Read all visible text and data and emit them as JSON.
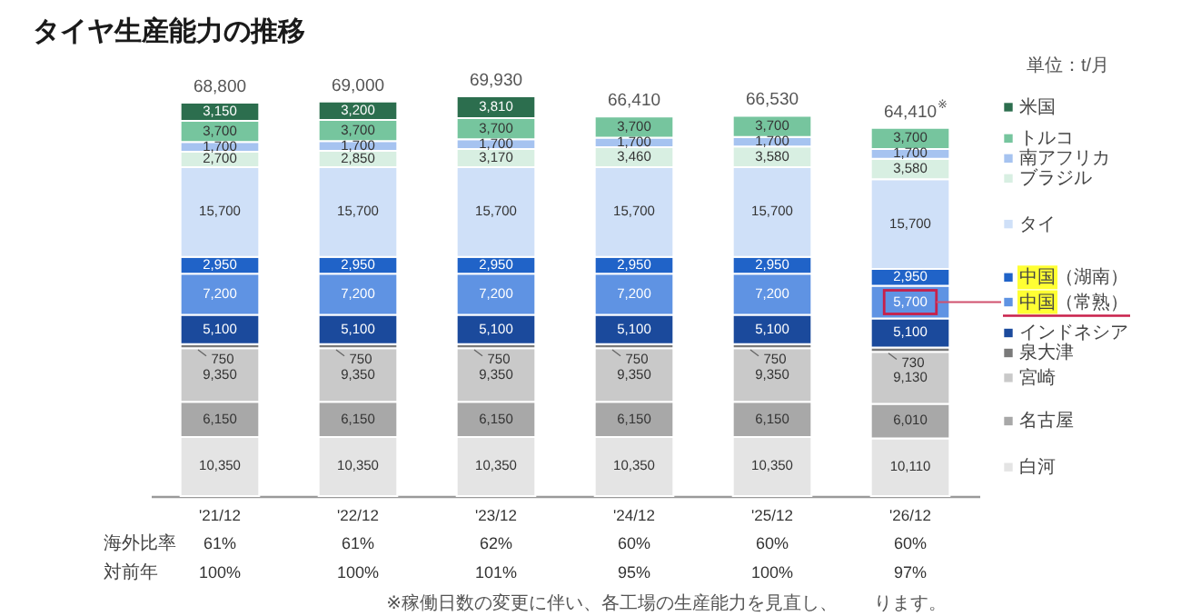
{
  "chart_data": [
    {
      "type": "bar",
      "title": "タイヤ生産能力の推移",
      "categories": [
        "'21/12",
        "'22/12",
        "'23/12",
        "'24/12",
        "'25/12",
        "'26/12"
      ],
      "stacked": true,
      "legend": "right",
      "totals": [
        "68,800",
        "69,000",
        "69,930",
        "66,410",
        "66,530",
        "64,410$^{※}$"
      ],
      "annotations": [
        "単位：t/月"
      ],
      "series": [
        {
          "name": "白河",
          "color": "#e4e4e4",
          "values": [
            10350,
            10350,
            10350,
            10350,
            10350,
            10110
          ],
          "value_labels": [
            "10,350",
            "10,350",
            "10,350",
            "10,350",
            "10,350",
            "10,110"
          ]
        },
        {
          "name": "名古屋",
          "color": "#a8a8a8",
          "values": [
            6150,
            6150,
            6150,
            6150,
            6150,
            6010
          ],
          "value_labels": [
            "6,150",
            "6,150",
            "6,150",
            "6,150",
            "6,150",
            "6,010"
          ]
        },
        {
          "name": "宮崎",
          "color": "#c9c9c9",
          "values": [
            9350,
            9350,
            9350,
            9350,
            9350,
            9130
          ],
          "value_labels": [
            "9,350",
            "9,350",
            "9,350",
            "9,350",
            "9,350",
            "9,130"
          ]
        },
        {
          "name": "泉大津",
          "color": "#7a7a7a",
          "values": [
            750,
            750,
            750,
            750,
            750,
            730
          ],
          "value_labels": [
            "750",
            "750",
            "750",
            "750",
            "750",
            "730"
          ]
        },
        {
          "name": "インドネシア",
          "color": "#1b4a9c",
          "values": [
            5100,
            5100,
            5100,
            5100,
            5100,
            5100
          ],
          "value_labels": [
            "5,100",
            "5,100",
            "5,100",
            "5,100",
            "5,100",
            "5,100"
          ]
        },
        {
          "name": "中国（常熟）",
          "color": "#5f93e3",
          "values": [
            7200,
            7200,
            7200,
            7200,
            7200,
            5700
          ],
          "value_labels": [
            "7,200",
            "7,200",
            "7,200",
            "7,200",
            "7,200",
            "5,700"
          ]
        },
        {
          "name": "中国（湖南）",
          "color": "#2063c8",
          "values": [
            2950,
            2950,
            2950,
            2950,
            2950,
            2950
          ],
          "value_labels": [
            "2,950",
            "2,950",
            "2,950",
            "2,950",
            "2,950",
            "2,950"
          ]
        },
        {
          "name": "タイ",
          "color": "#cfe0f8",
          "values": [
            15700,
            15700,
            15700,
            15700,
            15700,
            15700
          ],
          "value_labels": [
            "15,700",
            "15,700",
            "15,700",
            "15,700",
            "15,700",
            "15,700"
          ]
        },
        {
          "name": "ブラジル",
          "color": "#d8efe2",
          "values": [
            2700,
            2850,
            3170,
            3460,
            3580,
            3580
          ],
          "value_labels": [
            "2,700",
            "2,850",
            "3,170",
            "3,460",
            "3,580",
            "3,580"
          ]
        },
        {
          "name": "南アフリカ",
          "color": "#a6c3f0",
          "values": [
            1700,
            1700,
            1700,
            1700,
            1700,
            1700
          ],
          "value_labels": [
            "1,700",
            "1,700",
            "1,700",
            "1,700",
            "1,700",
            "1,700"
          ]
        },
        {
          "name": "トルコ",
          "color": "#76c59e",
          "values": [
            3700,
            3700,
            3700,
            3700,
            3700,
            3700
          ],
          "value_labels": [
            "3,700",
            "3,700",
            "3,700",
            "3,700",
            "3,700",
            "3,700"
          ]
        },
        {
          "name": "米国",
          "color": "#2c6e4e",
          "values": [
            3150,
            3200,
            3810,
            null,
            null,
            null
          ],
          "value_labels": [
            "3,150",
            "3,200",
            "3,810",
            null,
            null,
            null
          ]
        }
      ]
    },
    {
      "type": "other",
      "annotations": [
        "海外比率",
        "61%",
        "61%",
        "62%",
        "60%",
        "60%",
        "60%",
        "対前年",
        "100%",
        "100%",
        "101%",
        "95%",
        "100%",
        "97%",
        "※稼働日数の変更に伴い、各工場の生産能力を見直し、　　ります。"
      ]
    }
  ]
}
